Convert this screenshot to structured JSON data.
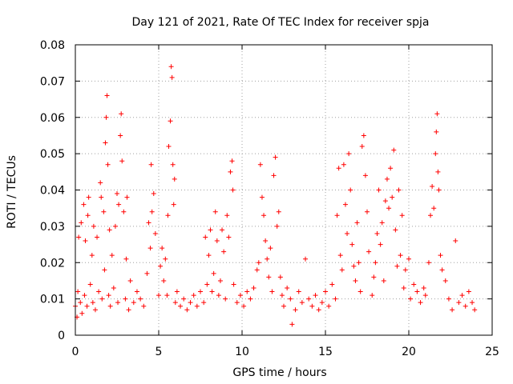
{
  "chart_data": {
    "type": "scatter",
    "title": "Day 121 of 2021, Rate Of TEC Index for receiver spja",
    "xlabel": "GPS time / hours",
    "ylabel": "ROTI / TECUs",
    "xlim": [
      0,
      25
    ],
    "ylim": [
      0,
      0.08
    ],
    "xticks": [
      0,
      5,
      10,
      15,
      20,
      25
    ],
    "xtick_labels": [
      "0",
      "5",
      "10",
      "15",
      "20",
      "25"
    ],
    "yticks": [
      0,
      0.01,
      0.02,
      0.03,
      0.04,
      0.05,
      0.06,
      0.07,
      0.08
    ],
    "ytick_labels": [
      "0",
      "0.01",
      "0.02",
      "0.03",
      "0.04",
      "0.05",
      "0.06",
      "0.07",
      "0.08"
    ],
    "grid": true,
    "marker": "+",
    "color": "#ff0000",
    "series": [
      {
        "name": "ROTI",
        "points": [
          [
            0.0,
            0.008
          ],
          [
            0.1,
            0.005
          ],
          [
            0.15,
            0.012
          ],
          [
            0.2,
            0.027
          ],
          [
            0.3,
            0.009
          ],
          [
            0.35,
            0.031
          ],
          [
            0.4,
            0.006
          ],
          [
            0.5,
            0.036
          ],
          [
            0.55,
            0.011
          ],
          [
            0.6,
            0.026
          ],
          [
            0.7,
            0.008
          ],
          [
            0.75,
            0.033
          ],
          [
            0.8,
            0.038
          ],
          [
            0.9,
            0.014
          ],
          [
            1.0,
            0.022
          ],
          [
            1.05,
            0.009
          ],
          [
            1.1,
            0.03
          ],
          [
            1.2,
            0.007
          ],
          [
            1.3,
            0.027
          ],
          [
            1.4,
            0.012
          ],
          [
            1.5,
            0.042
          ],
          [
            1.55,
            0.038
          ],
          [
            1.6,
            0.01
          ],
          [
            1.7,
            0.034
          ],
          [
            1.75,
            0.018
          ],
          [
            1.8,
            0.053
          ],
          [
            1.85,
            0.06
          ],
          [
            1.9,
            0.066
          ],
          [
            1.95,
            0.047
          ],
          [
            2.0,
            0.011
          ],
          [
            2.05,
            0.029
          ],
          [
            2.1,
            0.008
          ],
          [
            2.2,
            0.022
          ],
          [
            2.3,
            0.013
          ],
          [
            2.4,
            0.03
          ],
          [
            2.5,
            0.039
          ],
          [
            2.55,
            0.009
          ],
          [
            2.6,
            0.036
          ],
          [
            2.7,
            0.055
          ],
          [
            2.75,
            0.061
          ],
          [
            2.8,
            0.048
          ],
          [
            2.9,
            0.034
          ],
          [
            3.0,
            0.01
          ],
          [
            3.05,
            0.021
          ],
          [
            3.1,
            0.038
          ],
          [
            3.2,
            0.007
          ],
          [
            3.3,
            0.015
          ],
          [
            3.5,
            0.009
          ],
          [
            3.7,
            0.012
          ],
          [
            3.9,
            0.01
          ],
          [
            4.1,
            0.008
          ],
          [
            4.3,
            0.017
          ],
          [
            4.4,
            0.031
          ],
          [
            4.5,
            0.024
          ],
          [
            4.55,
            0.047
          ],
          [
            4.6,
            0.034
          ],
          [
            4.7,
            0.039
          ],
          [
            4.8,
            0.028
          ],
          [
            5.0,
            0.011
          ],
          [
            5.1,
            0.019
          ],
          [
            5.2,
            0.024
          ],
          [
            5.3,
            0.015
          ],
          [
            5.4,
            0.021
          ],
          [
            5.5,
            0.011
          ],
          [
            5.55,
            0.033
          ],
          [
            5.6,
            0.052
          ],
          [
            5.7,
            0.059
          ],
          [
            5.75,
            0.074
          ],
          [
            5.8,
            0.071
          ],
          [
            5.85,
            0.047
          ],
          [
            5.9,
            0.036
          ],
          [
            5.95,
            0.043
          ],
          [
            6.0,
            0.009
          ],
          [
            6.1,
            0.012
          ],
          [
            6.3,
            0.008
          ],
          [
            6.5,
            0.01
          ],
          [
            6.7,
            0.007
          ],
          [
            6.9,
            0.009
          ],
          [
            7.1,
            0.011
          ],
          [
            7.3,
            0.008
          ],
          [
            7.5,
            0.012
          ],
          [
            7.7,
            0.009
          ],
          [
            7.8,
            0.027
          ],
          [
            7.9,
            0.014
          ],
          [
            8.0,
            0.022
          ],
          [
            8.1,
            0.029
          ],
          [
            8.2,
            0.012
          ],
          [
            8.3,
            0.017
          ],
          [
            8.4,
            0.034
          ],
          [
            8.5,
            0.026
          ],
          [
            8.6,
            0.011
          ],
          [
            8.7,
            0.015
          ],
          [
            8.8,
            0.029
          ],
          [
            8.9,
            0.023
          ],
          [
            9.0,
            0.01
          ],
          [
            9.1,
            0.033
          ],
          [
            9.2,
            0.027
          ],
          [
            9.3,
            0.045
          ],
          [
            9.4,
            0.048
          ],
          [
            9.45,
            0.04
          ],
          [
            9.5,
            0.014
          ],
          [
            9.7,
            0.009
          ],
          [
            9.9,
            0.011
          ],
          [
            10.1,
            0.008
          ],
          [
            10.3,
            0.012
          ],
          [
            10.5,
            0.01
          ],
          [
            10.7,
            0.013
          ],
          [
            10.9,
            0.018
          ],
          [
            11.0,
            0.02
          ],
          [
            11.1,
            0.047
          ],
          [
            11.2,
            0.038
          ],
          [
            11.3,
            0.033
          ],
          [
            11.4,
            0.026
          ],
          [
            11.5,
            0.021
          ],
          [
            11.6,
            0.016
          ],
          [
            11.7,
            0.024
          ],
          [
            11.8,
            0.012
          ],
          [
            11.9,
            0.044
          ],
          [
            12.0,
            0.049
          ],
          [
            12.1,
            0.03
          ],
          [
            12.2,
            0.034
          ],
          [
            12.3,
            0.016
          ],
          [
            12.4,
            0.011
          ],
          [
            12.5,
            0.008
          ],
          [
            12.7,
            0.013
          ],
          [
            12.9,
            0.01
          ],
          [
            13.0,
            0.003
          ],
          [
            13.2,
            0.007
          ],
          [
            13.4,
            0.012
          ],
          [
            13.6,
            0.009
          ],
          [
            13.8,
            0.021
          ],
          [
            14.0,
            0.01
          ],
          [
            14.2,
            0.008
          ],
          [
            14.4,
            0.011
          ],
          [
            14.6,
            0.007
          ],
          [
            14.8,
            0.009
          ],
          [
            15.0,
            0.012
          ],
          [
            15.2,
            0.008
          ],
          [
            15.4,
            0.014
          ],
          [
            15.6,
            0.01
          ],
          [
            15.7,
            0.033
          ],
          [
            15.8,
            0.046
          ],
          [
            15.9,
            0.022
          ],
          [
            16.0,
            0.018
          ],
          [
            16.1,
            0.047
          ],
          [
            16.2,
            0.036
          ],
          [
            16.3,
            0.028
          ],
          [
            16.4,
            0.05
          ],
          [
            16.5,
            0.04
          ],
          [
            16.6,
            0.025
          ],
          [
            16.7,
            0.019
          ],
          [
            16.8,
            0.015
          ],
          [
            16.9,
            0.031
          ],
          [
            17.0,
            0.02
          ],
          [
            17.1,
            0.012
          ],
          [
            17.2,
            0.052
          ],
          [
            17.3,
            0.055
          ],
          [
            17.4,
            0.044
          ],
          [
            17.5,
            0.034
          ],
          [
            17.6,
            0.023
          ],
          [
            17.8,
            0.011
          ],
          [
            17.9,
            0.016
          ],
          [
            18.0,
            0.02
          ],
          [
            18.1,
            0.028
          ],
          [
            18.2,
            0.04
          ],
          [
            18.3,
            0.025
          ],
          [
            18.4,
            0.031
          ],
          [
            18.5,
            0.015
          ],
          [
            18.6,
            0.037
          ],
          [
            18.7,
            0.043
          ],
          [
            18.8,
            0.035
          ],
          [
            18.9,
            0.046
          ],
          [
            19.0,
            0.038
          ],
          [
            19.1,
            0.051
          ],
          [
            19.2,
            0.029
          ],
          [
            19.3,
            0.019
          ],
          [
            19.4,
            0.04
          ],
          [
            19.5,
            0.022
          ],
          [
            19.6,
            0.033
          ],
          [
            19.7,
            0.013
          ],
          [
            19.8,
            0.018
          ],
          [
            20.0,
            0.021
          ],
          [
            20.1,
            0.01
          ],
          [
            20.3,
            0.014
          ],
          [
            20.5,
            0.012
          ],
          [
            20.7,
            0.009
          ],
          [
            20.9,
            0.013
          ],
          [
            21.0,
            0.011
          ],
          [
            21.2,
            0.02
          ],
          [
            21.3,
            0.033
          ],
          [
            21.4,
            0.041
          ],
          [
            21.5,
            0.035
          ],
          [
            21.6,
            0.05
          ],
          [
            21.65,
            0.056
          ],
          [
            21.7,
            0.061
          ],
          [
            21.75,
            0.045
          ],
          [
            21.8,
            0.04
          ],
          [
            21.9,
            0.022
          ],
          [
            22.0,
            0.018
          ],
          [
            22.2,
            0.015
          ],
          [
            22.4,
            0.01
          ],
          [
            22.6,
            0.007
          ],
          [
            22.8,
            0.026
          ],
          [
            23.0,
            0.009
          ],
          [
            23.2,
            0.011
          ],
          [
            23.4,
            0.008
          ],
          [
            23.6,
            0.012
          ],
          [
            23.8,
            0.009
          ],
          [
            23.95,
            0.007
          ]
        ]
      }
    ]
  }
}
